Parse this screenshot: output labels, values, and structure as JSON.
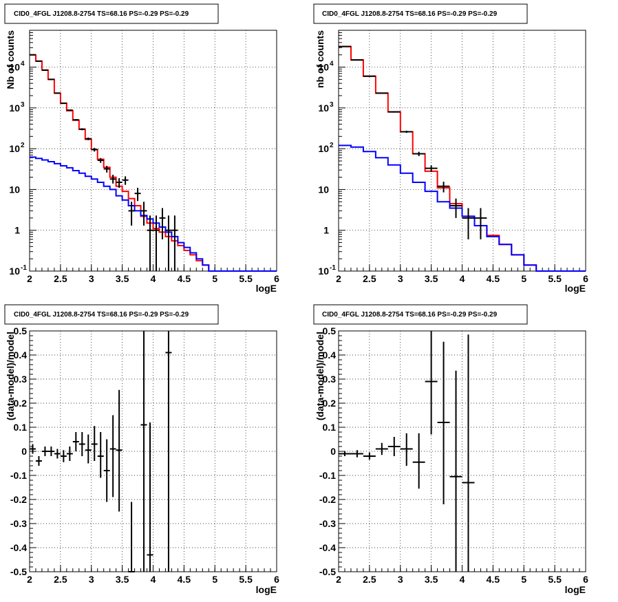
{
  "chart_data": [
    {
      "type": "line",
      "title": "CID0_4FGL J1208.8-2754 TS=68.16 PS=-0.29 PS=-0.29",
      "xlabel": "logE",
      "ylabel": "Nb of counts",
      "xlim": [
        2,
        6
      ],
      "ylim": [
        0.1,
        80000
      ],
      "yscale": "log",
      "grid": true,
      "x_ticks": [
        "2",
        "2.5",
        "3",
        "3.5",
        "4",
        "4.5",
        "5",
        "5.5",
        "6"
      ],
      "y_ticks": [
        {
          "value": 0.1,
          "base": "10",
          "exp": "-1"
        },
        {
          "value": 1,
          "base": "1",
          "exp": ""
        },
        {
          "value": 10,
          "base": "10",
          "exp": ""
        },
        {
          "value": 100,
          "base": "10",
          "exp": "2"
        },
        {
          "value": 1000,
          "base": "10",
          "exp": "3"
        },
        {
          "value": 10000,
          "base": "10",
          "exp": "4"
        }
      ],
      "bin_edges": [
        2.0,
        2.1,
        2.2,
        2.3,
        2.4,
        2.5,
        2.6,
        2.7,
        2.8,
        2.9,
        3.0,
        3.1,
        3.2,
        3.3,
        3.4,
        3.5,
        3.6,
        3.7,
        3.8,
        3.9,
        4.0,
        4.1,
        4.2,
        4.3,
        4.4,
        4.5,
        4.6,
        4.7,
        4.8,
        4.9,
        5.0,
        5.1,
        5.2,
        5.3,
        5.4,
        5.5,
        5.6,
        5.7,
        5.8,
        5.9,
        6.0
      ],
      "series": [
        {
          "color": "#ff0000",
          "style": "step",
          "values": [
            20000,
            14000,
            8500,
            5000,
            2300,
            1300,
            850,
            500,
            300,
            170,
            95,
            55,
            35,
            20,
            12,
            9,
            6,
            4,
            2.2,
            1.5,
            1.1,
            0.9,
            0.7,
            0.55,
            0.42,
            0.32,
            0.25,
            0.18,
            0.14,
            0.1,
            0.1,
            0.1,
            0.1,
            0.1,
            0.1,
            0.1,
            0.1,
            0.1,
            0.1,
            0.1
          ]
        },
        {
          "color": "#0000ff",
          "style": "step",
          "values": [
            62,
            58,
            53,
            48,
            43,
            38,
            34,
            29,
            25,
            21,
            18,
            15,
            12,
            10,
            7,
            5.5,
            4,
            3,
            2.3,
            1.9,
            1.5,
            1.2,
            0.9,
            0.7,
            0.5,
            0.38,
            0.28,
            0.2,
            0.14,
            0.1,
            0.1,
            0.1,
            0.1,
            0.1,
            0.1,
            0.1,
            0.1,
            0.1,
            0.1,
            0.1
          ]
        },
        {
          "color": "#000000",
          "style": "errorbars",
          "points": [
            {
              "x": 2.05,
              "y": 20000,
              "lo": 19800,
              "hi": 20200
            },
            {
              "x": 2.15,
              "y": 14000,
              "lo": 13850,
              "hi": 14150
            },
            {
              "x": 2.25,
              "y": 8400,
              "lo": 8300,
              "hi": 8500
            },
            {
              "x": 2.35,
              "y": 5000,
              "lo": 4920,
              "hi": 5080
            },
            {
              "x": 2.45,
              "y": 2300,
              "lo": 2250,
              "hi": 2350
            },
            {
              "x": 2.55,
              "y": 1300,
              "lo": 1260,
              "hi": 1340
            },
            {
              "x": 2.65,
              "y": 880,
              "lo": 850,
              "hi": 910
            },
            {
              "x": 2.75,
              "y": 510,
              "lo": 490,
              "hi": 530
            },
            {
              "x": 2.85,
              "y": 300,
              "lo": 283,
              "hi": 317
            },
            {
              "x": 2.95,
              "y": 175,
              "lo": 162,
              "hi": 188
            },
            {
              "x": 3.05,
              "y": 95,
              "lo": 85,
              "hi": 105
            },
            {
              "x": 3.15,
              "y": 52,
              "lo": 45,
              "hi": 59
            },
            {
              "x": 3.25,
              "y": 32,
              "lo": 26,
              "hi": 38
            },
            {
              "x": 3.35,
              "y": 18,
              "lo": 14,
              "hi": 23
            },
            {
              "x": 3.45,
              "y": 15,
              "lo": 11,
              "hi": 19
            },
            {
              "x": 3.55,
              "y": 17,
              "lo": 13,
              "hi": 21
            },
            {
              "x": 3.65,
              "y": 3,
              "lo": 1.3,
              "hi": 5
            },
            {
              "x": 3.75,
              "y": 8,
              "lo": 5.2,
              "hi": 11
            },
            {
              "x": 3.85,
              "y": 3,
              "lo": 1.3,
              "hi": 5
            },
            {
              "x": 3.95,
              "y": 1,
              "lo": 0.1,
              "hi": 2.3
            },
            {
              "x": 4.05,
              "y": 1,
              "lo": 0.1,
              "hi": 2.3
            },
            {
              "x": 4.15,
              "y": 2,
              "lo": 0.6,
              "hi": 3.5
            },
            {
              "x": 4.25,
              "y": 1,
              "lo": 0.1,
              "hi": 2.3
            },
            {
              "x": 4.35,
              "y": 1,
              "lo": 0.1,
              "hi": 2.3
            }
          ]
        }
      ]
    },
    {
      "type": "line",
      "title": "CID0_4FGL J1208.8-2754 TS=68.16 PS=-0.29 PS=-0.29",
      "xlabel": "logE",
      "ylabel": "nb of counts",
      "xlim": [
        2,
        6
      ],
      "ylim": [
        0.1,
        80000
      ],
      "yscale": "log",
      "grid": true,
      "x_ticks": [
        "2",
        "2.5",
        "3",
        "3.5",
        "4",
        "4.5",
        "5",
        "5.5",
        "6"
      ],
      "y_ticks": [
        {
          "value": 0.1,
          "base": "10",
          "exp": "-1"
        },
        {
          "value": 1,
          "base": "1",
          "exp": ""
        },
        {
          "value": 10,
          "base": "10",
          "exp": ""
        },
        {
          "value": 100,
          "base": "10",
          "exp": "2"
        },
        {
          "value": 1000,
          "base": "10",
          "exp": "3"
        },
        {
          "value": 10000,
          "base": "10",
          "exp": "4"
        }
      ],
      "bin_edges": [
        2.0,
        2.2,
        2.4,
        2.6,
        2.8,
        3.0,
        3.2,
        3.4,
        3.6,
        3.8,
        4.0,
        4.2,
        4.4,
        4.6,
        4.8,
        5.0,
        5.2,
        5.4,
        5.6,
        5.8,
        6.0
      ],
      "series": [
        {
          "color": "#ff0000",
          "style": "step",
          "values": [
            32000,
            15000,
            6000,
            2300,
            800,
            260,
            75,
            28,
            11,
            4.5,
            2.2,
            1.3,
            0.75,
            0.45,
            0.25,
            0.14,
            0.1,
            0.1,
            0.1,
            0.1
          ]
        },
        {
          "color": "#0000ff",
          "style": "step",
          "values": [
            120,
            110,
            85,
            60,
            40,
            25,
            15,
            9,
            5,
            3.5,
            2.2,
            1.3,
            0.7,
            0.45,
            0.25,
            0.14,
            0.1,
            0.1,
            0.1,
            0.1
          ]
        },
        {
          "color": "#000000",
          "style": "errorbars",
          "points": [
            {
              "x": 2.1,
              "y": 32000,
              "lo": 31800,
              "hi": 32200
            },
            {
              "x": 2.3,
              "y": 15000,
              "lo": 14850,
              "hi": 15150
            },
            {
              "x": 2.5,
              "y": 6000,
              "lo": 5920,
              "hi": 6080
            },
            {
              "x": 2.7,
              "y": 2300,
              "lo": 2250,
              "hi": 2350
            },
            {
              "x": 2.9,
              "y": 800,
              "lo": 770,
              "hi": 830
            },
            {
              "x": 3.1,
              "y": 260,
              "lo": 244,
              "hi": 276
            },
            {
              "x": 3.3,
              "y": 75,
              "lo": 66,
              "hi": 84
            },
            {
              "x": 3.5,
              "y": 33,
              "lo": 27,
              "hi": 39
            },
            {
              "x": 3.7,
              "y": 12,
              "lo": 8.5,
              "hi": 15.5
            },
            {
              "x": 3.9,
              "y": 4,
              "lo": 2,
              "hi": 6
            },
            {
              "x": 4.1,
              "y": 2,
              "lo": 0.6,
              "hi": 3.5
            },
            {
              "x": 4.3,
              "y": 2,
              "lo": 0.6,
              "hi": 3.5
            }
          ]
        }
      ]
    },
    {
      "type": "scatter",
      "title": "CID0_4FGL J1208.8-2754 TS=68.16 PS=-0.29 PS=-0.29",
      "xlabel": "logE",
      "ylabel": "(data-model)/model",
      "xlim": [
        2,
        6
      ],
      "ylim": [
        -0.5,
        0.5
      ],
      "grid": true,
      "x_ticks": [
        "2",
        "2.5",
        "3",
        "3.5",
        "4",
        "4.5",
        "5",
        "5.5",
        "6"
      ],
      "y_ticks": [
        "-0.5",
        "-0.4",
        "-0.3",
        "-0.2",
        "-0.1",
        "0",
        "0.1",
        "0.2",
        "0.3",
        "0.4",
        "0.5"
      ],
      "xerr": 0.05,
      "points": [
        {
          "x": 2.05,
          "y": 0.01,
          "lo": -0.01,
          "hi": 0.03
        },
        {
          "x": 2.15,
          "y": -0.04,
          "lo": -0.06,
          "hi": -0.02
        },
        {
          "x": 2.25,
          "y": 0.0,
          "lo": -0.02,
          "hi": 0.02
        },
        {
          "x": 2.35,
          "y": 0.0,
          "lo": -0.02,
          "hi": 0.02
        },
        {
          "x": 2.45,
          "y": -0.01,
          "lo": -0.03,
          "hi": 0.01
        },
        {
          "x": 2.55,
          "y": -0.02,
          "lo": -0.045,
          "hi": 0.005
        },
        {
          "x": 2.65,
          "y": -0.01,
          "lo": -0.04,
          "hi": 0.02
        },
        {
          "x": 2.75,
          "y": 0.04,
          "lo": 0.0,
          "hi": 0.08
        },
        {
          "x": 2.85,
          "y": 0.03,
          "lo": -0.02,
          "hi": 0.08
        },
        {
          "x": 2.95,
          "y": 0.005,
          "lo": -0.05,
          "hi": 0.07
        },
        {
          "x": 3.05,
          "y": 0.03,
          "lo": -0.04,
          "hi": 0.105
        },
        {
          "x": 3.15,
          "y": -0.02,
          "lo": -0.11,
          "hi": 0.08
        },
        {
          "x": 3.25,
          "y": -0.08,
          "lo": -0.21,
          "hi": 0.05
        },
        {
          "x": 3.35,
          "y": 0.01,
          "lo": -0.19,
          "hi": 0.15
        },
        {
          "x": 3.45,
          "y": 0.005,
          "lo": -0.25,
          "hi": 0.255
        },
        {
          "x": 3.65,
          "y": -0.5,
          "lo": -0.5,
          "hi": -0.21
        },
        {
          "x": 3.85,
          "y": 0.11,
          "lo": -0.5,
          "hi": 0.5
        },
        {
          "x": 3.95,
          "y": -0.43,
          "lo": -0.5,
          "hi": 0.12
        },
        {
          "x": 4.25,
          "y": 0.41,
          "lo": -0.5,
          "hi": 0.5
        }
      ]
    },
    {
      "type": "scatter",
      "title": "CID0_4FGL J1208.8-2754 TS=68.16 PS=-0.29 PS=-0.29",
      "xlabel": "logE",
      "ylabel": "(data-model)/model",
      "xlim": [
        2,
        6
      ],
      "ylim": [
        -0.5,
        0.5
      ],
      "grid": true,
      "x_ticks": [
        "2",
        "2.5",
        "3",
        "3.5",
        "4",
        "4.5",
        "5",
        "5.5",
        "6"
      ],
      "y_ticks": [
        "-0.5",
        "-0.4",
        "-0.3",
        "-0.2",
        "-0.1",
        "0",
        "0.1",
        "0.2",
        "0.3",
        "0.4",
        "0.5"
      ],
      "xerr": 0.1,
      "points": [
        {
          "x": 2.1,
          "y": -0.01,
          "lo": -0.02,
          "hi": 0.0
        },
        {
          "x": 2.3,
          "y": -0.01,
          "lo": -0.025,
          "hi": 0.005
        },
        {
          "x": 2.5,
          "y": -0.02,
          "lo": -0.035,
          "hi": -0.005
        },
        {
          "x": 2.7,
          "y": 0.01,
          "lo": -0.015,
          "hi": 0.035
        },
        {
          "x": 2.9,
          "y": 0.02,
          "lo": -0.02,
          "hi": 0.06
        },
        {
          "x": 3.1,
          "y": 0.01,
          "lo": -0.06,
          "hi": 0.075
        },
        {
          "x": 3.3,
          "y": -0.045,
          "lo": -0.155,
          "hi": 0.075
        },
        {
          "x": 3.5,
          "y": 0.29,
          "lo": 0.07,
          "hi": 0.5
        },
        {
          "x": 3.7,
          "y": 0.12,
          "lo": -0.22,
          "hi": 0.455
        },
        {
          "x": 3.9,
          "y": -0.105,
          "lo": -0.5,
          "hi": 0.335
        },
        {
          "x": 4.1,
          "y": -0.13,
          "lo": -0.5,
          "hi": 0.485
        }
      ]
    }
  ]
}
